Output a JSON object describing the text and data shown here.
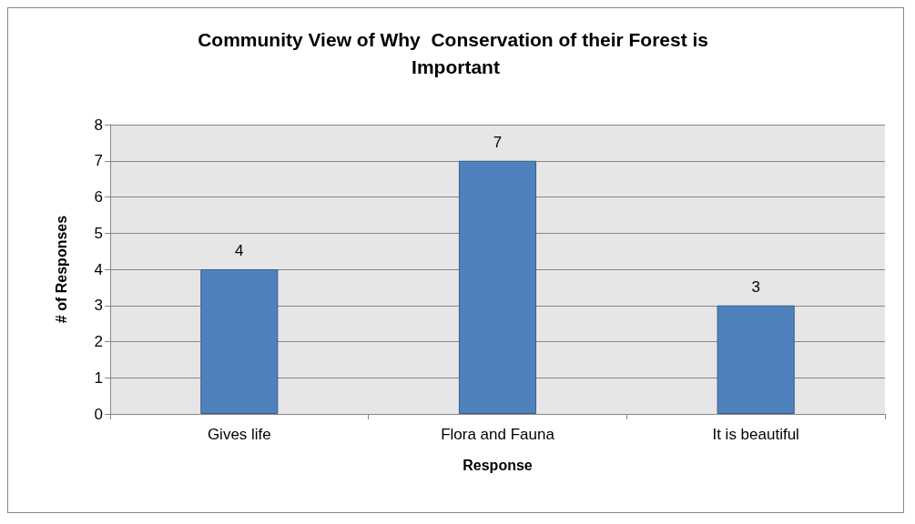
{
  "chart_data": {
    "type": "bar",
    "title": "Community View of Why  Conservation of their Forest is Important",
    "xlabel": "Response",
    "ylabel": "# of Responses",
    "categories": [
      "Gives life",
      "Flora and Fauna",
      "It is beautiful"
    ],
    "values": [
      4,
      7,
      3
    ],
    "color": "#4f81bd",
    "ylim": [
      0,
      8
    ],
    "yticks": [
      0,
      1,
      2,
      3,
      4,
      5,
      6,
      7,
      8
    ],
    "grid": "y",
    "data_labels": true
  }
}
